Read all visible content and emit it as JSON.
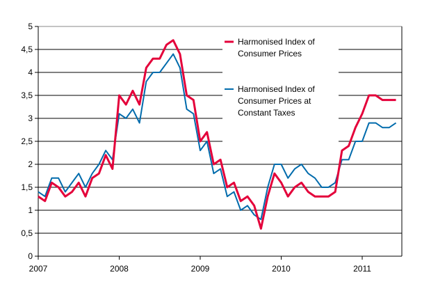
{
  "chart_data": {
    "type": "line",
    "title": "",
    "xlabel": "",
    "ylabel": "",
    "x_start": "2007-01",
    "x_end": "2011-06",
    "frequency": "monthly",
    "xticks": [
      "2007",
      "2008",
      "2009",
      "2010",
      "2011"
    ],
    "yticks": [
      "0",
      "0,5",
      "1",
      "1,5",
      "2",
      "2,5",
      "3",
      "3,5",
      "4",
      "4,5",
      "5"
    ],
    "ylim": [
      0,
      5
    ],
    "grid": "horizontal",
    "legend_placement": "top-right",
    "series": [
      {
        "name": "Harmonised Index of Consumer Prices",
        "name_lines": [
          "Harmonised Index of",
          "Consumer Prices"
        ],
        "color": "#e4003a",
        "values": [
          1.3,
          1.2,
          1.6,
          1.5,
          1.3,
          1.4,
          1.6,
          1.3,
          1.7,
          1.8,
          2.2,
          1.9,
          3.5,
          3.3,
          3.6,
          3.3,
          4.1,
          4.3,
          4.3,
          4.6,
          4.7,
          4.4,
          3.5,
          3.4,
          2.5,
          2.7,
          2.0,
          2.1,
          1.5,
          1.6,
          1.2,
          1.3,
          1.1,
          0.6,
          1.3,
          1.8,
          1.6,
          1.3,
          1.5,
          1.6,
          1.4,
          1.3,
          1.3,
          1.3,
          1.4,
          2.3,
          2.4,
          2.8,
          3.1,
          3.5,
          3.5,
          3.4,
          3.4,
          3.4
        ]
      },
      {
        "name": "Harmonised Index of Consumer Prices at Constant Taxes",
        "name_lines": [
          "Harmonised Index of",
          "Consumer Prices at",
          "Constant Taxes"
        ],
        "color": "#006bac",
        "values": [
          1.4,
          1.3,
          1.7,
          1.7,
          1.4,
          1.6,
          1.8,
          1.5,
          1.8,
          2.0,
          2.3,
          2.1,
          3.1,
          3.0,
          3.2,
          2.9,
          3.8,
          4.0,
          4.0,
          4.2,
          4.4,
          4.1,
          3.2,
          3.1,
          2.3,
          2.5,
          1.8,
          1.9,
          1.3,
          1.4,
          1.0,
          1.1,
          0.9,
          0.8,
          1.5,
          2.0,
          2.0,
          1.7,
          1.9,
          2.0,
          1.8,
          1.7,
          1.5,
          1.5,
          1.6,
          2.1,
          2.1,
          2.5,
          2.5,
          2.9,
          2.9,
          2.8,
          2.8,
          2.9
        ]
      }
    ]
  }
}
